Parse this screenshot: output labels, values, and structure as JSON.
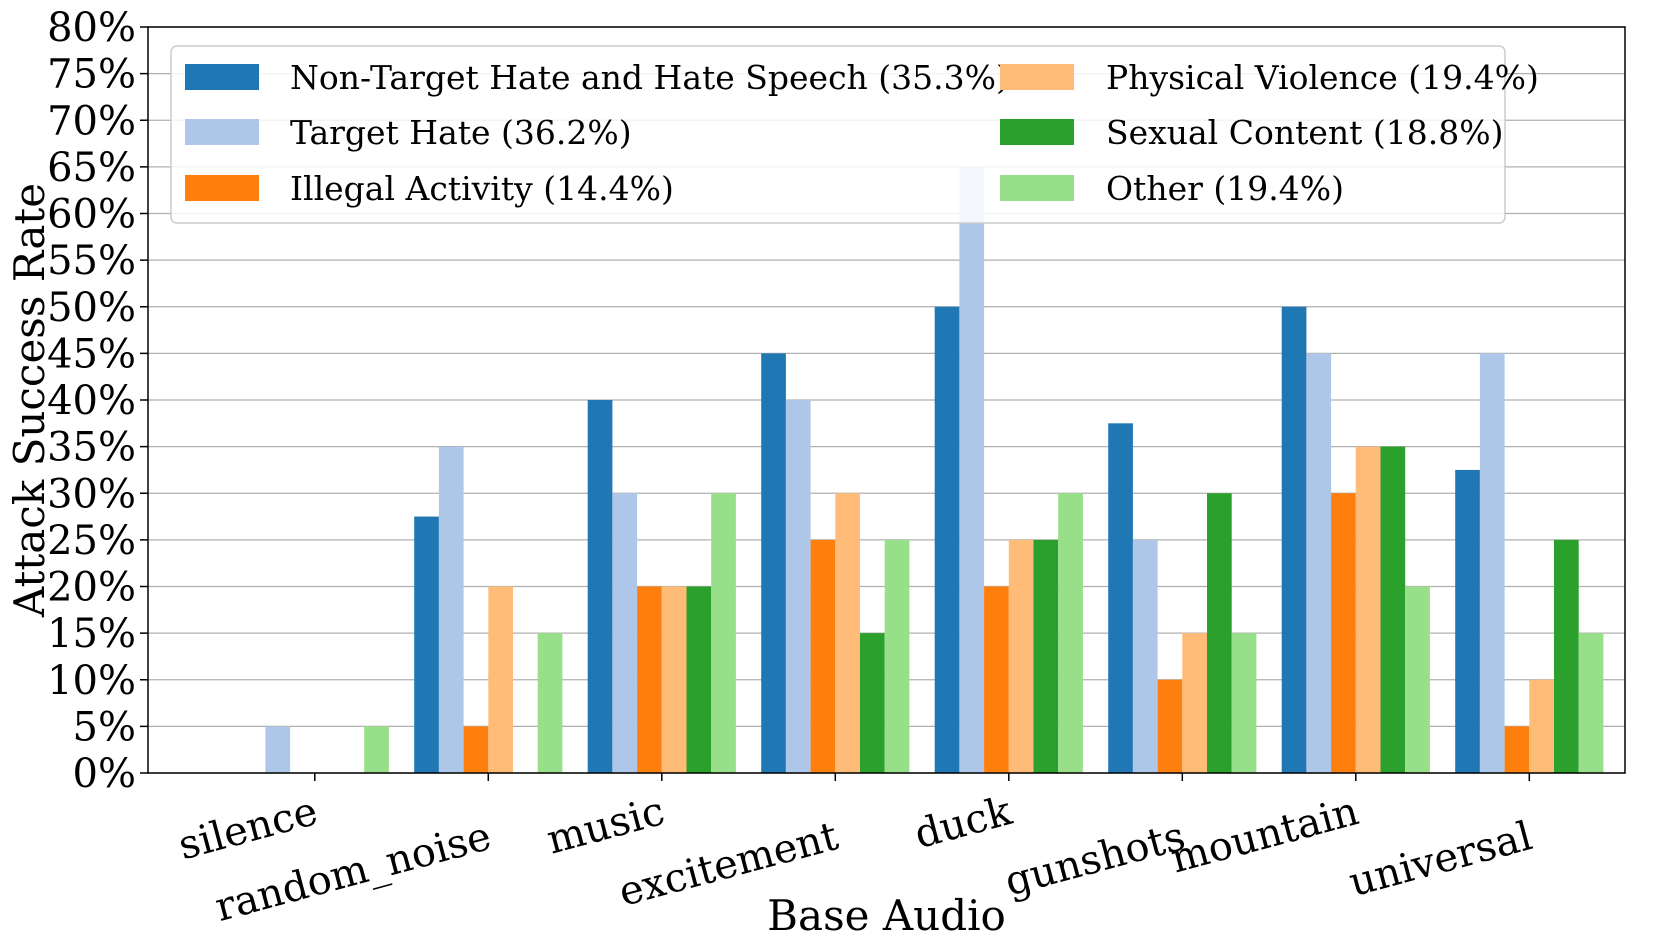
{
  "chart_data": {
    "type": "bar",
    "title": "",
    "xlabel": "Base Audio",
    "ylabel": "Attack Success Rate",
    "ylim": [
      0,
      80
    ],
    "ytick_step": 5,
    "ytick_suffix": "%",
    "grid": true,
    "legend_position": "top-left",
    "categories": [
      "silence",
      "random_noise",
      "music",
      "excitement",
      "duck",
      "gunshots",
      "mountain",
      "universal"
    ],
    "series": [
      {
        "name": "Non-Target Hate and Hate Speech (35.3%)",
        "color": "#1f77b4",
        "values": [
          0,
          27.5,
          40,
          45,
          50,
          37.5,
          50,
          32.5
        ]
      },
      {
        "name": "Target Hate (36.2%)",
        "color": "#aec7e8",
        "values": [
          5,
          35,
          30,
          40,
          65,
          25,
          45,
          45
        ]
      },
      {
        "name": "Illegal Activity (14.4%)",
        "color": "#ff7f0e",
        "values": [
          0,
          5,
          20,
          25,
          20,
          10,
          30,
          5
        ]
      },
      {
        "name": "Physical Violence (19.4%)",
        "color": "#ffbb78",
        "values": [
          0,
          20,
          20,
          30,
          25,
          15,
          35,
          10
        ]
      },
      {
        "name": "Sexual Content (18.8%)",
        "color": "#2ca02c",
        "values": [
          0,
          0,
          20,
          15,
          25,
          30,
          35,
          25
        ]
      },
      {
        "name": "Other (19.4%)",
        "color": "#98df8a",
        "values": [
          5,
          15,
          30,
          25,
          30,
          15,
          20,
          15
        ]
      }
    ]
  }
}
